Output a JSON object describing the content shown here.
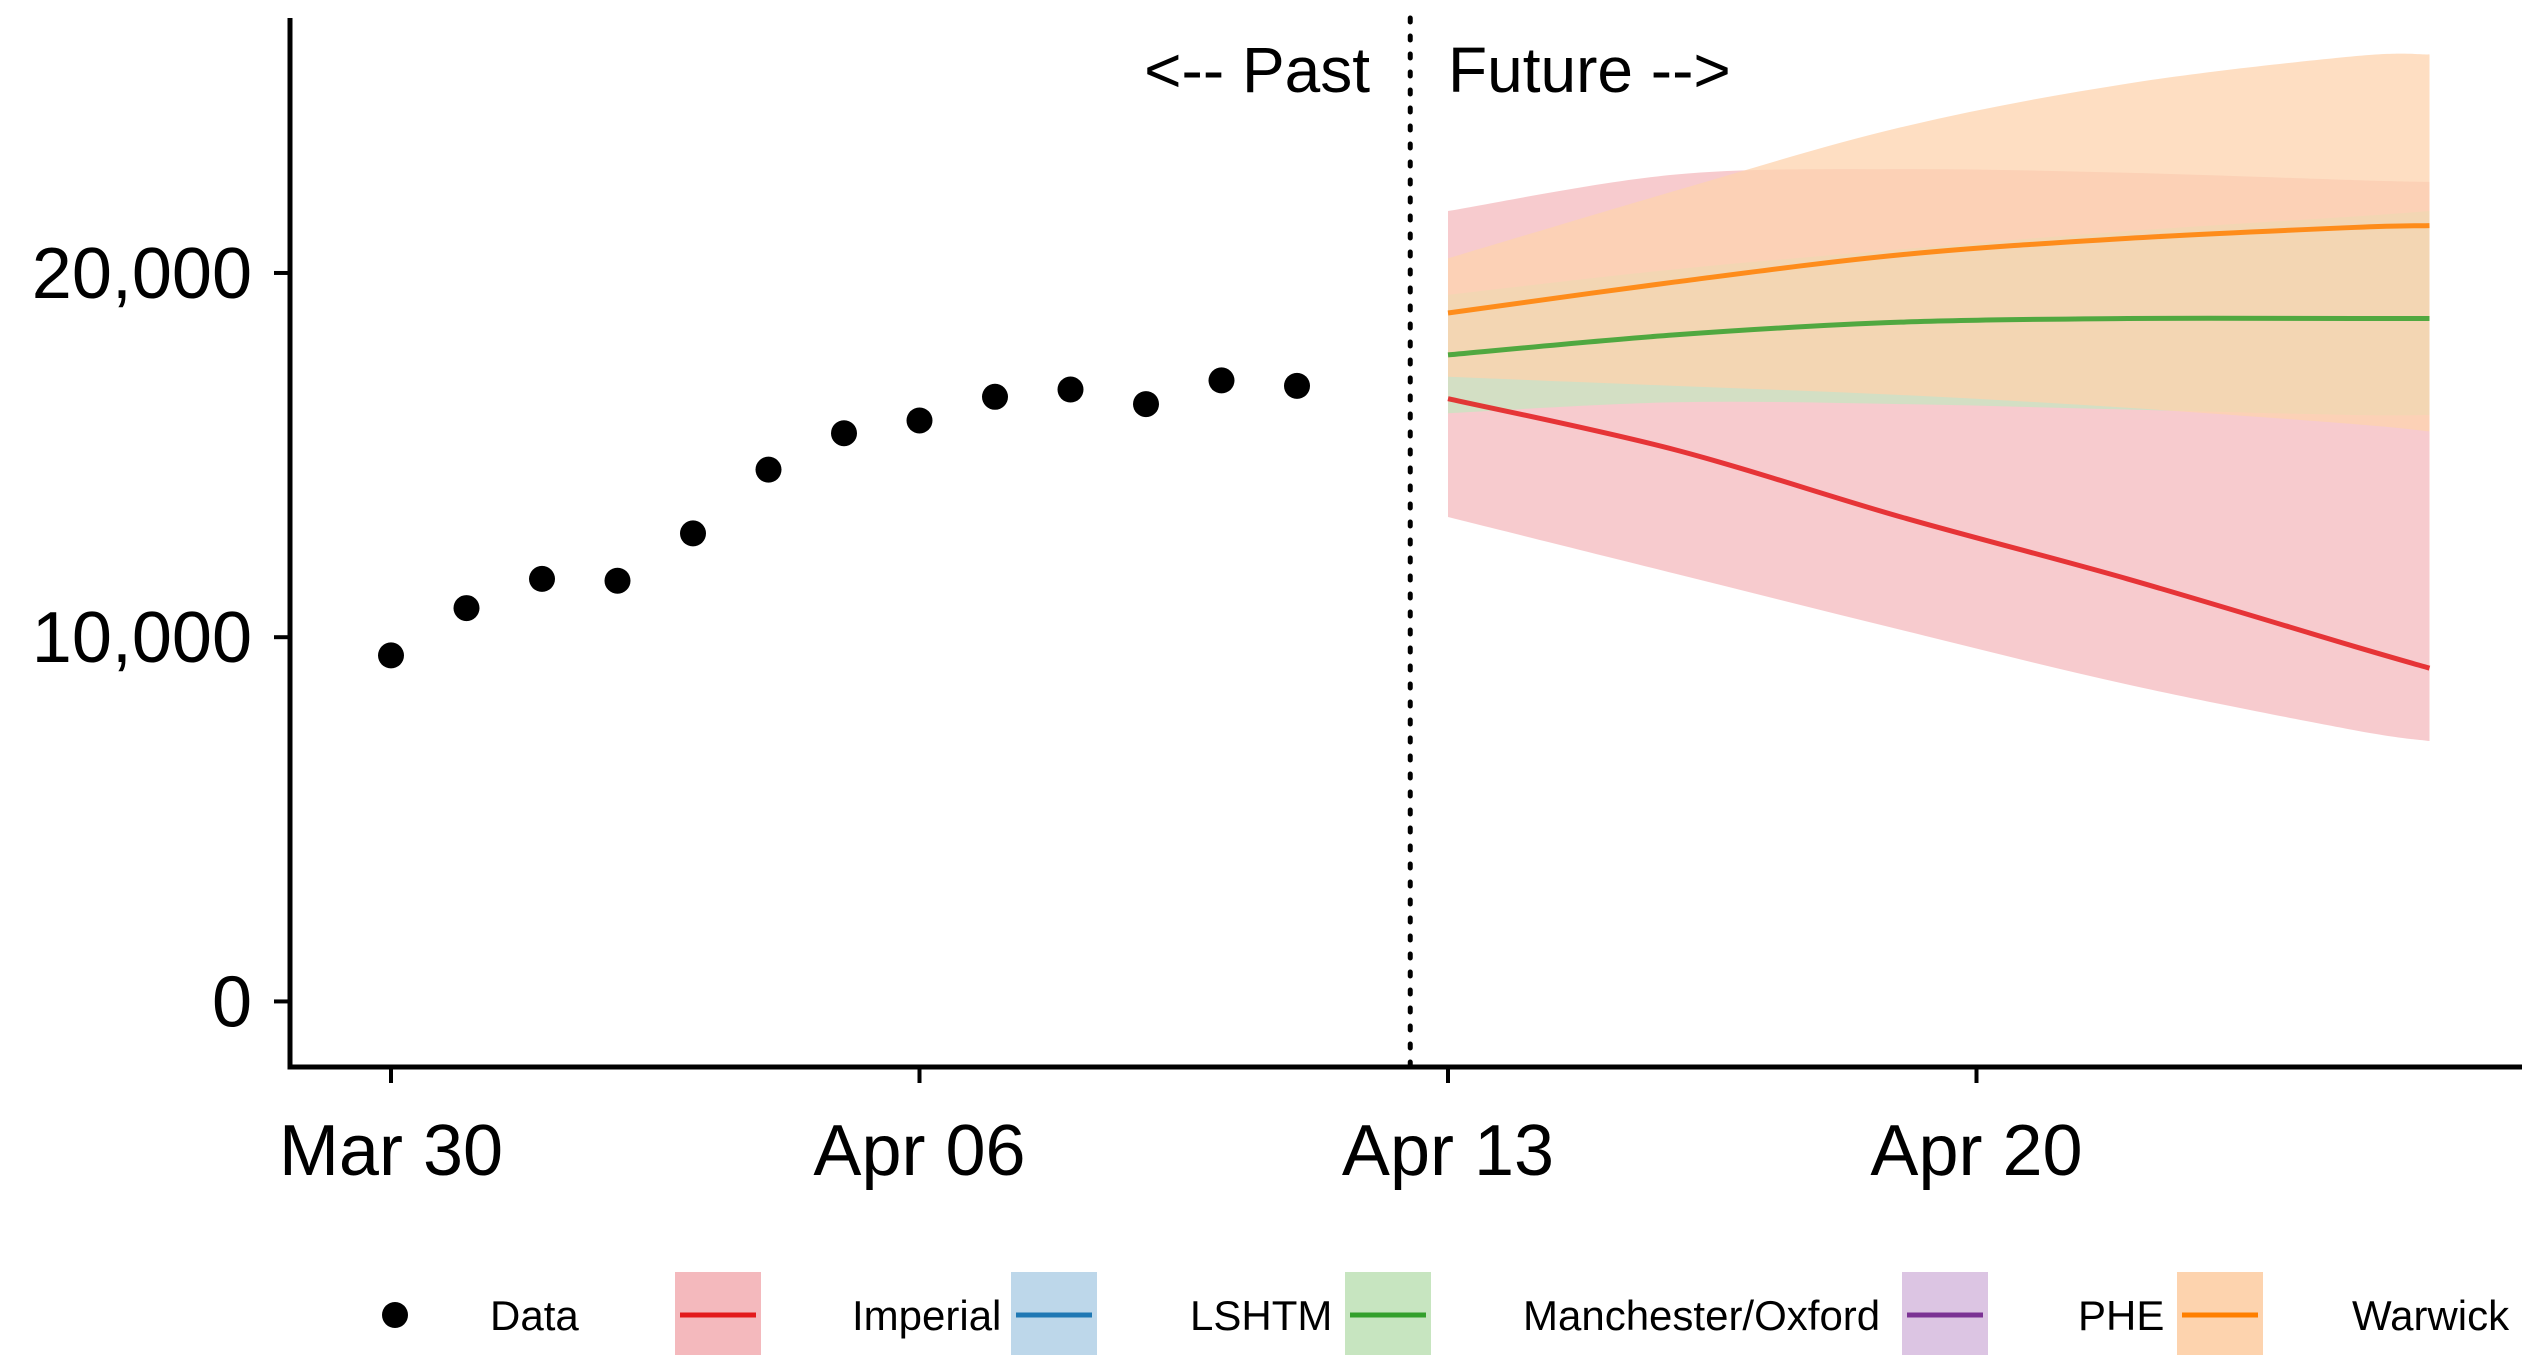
{
  "chart_data": {
    "type": "line",
    "title": "",
    "xlabel": "",
    "ylabel": "",
    "x_ticks": [
      "Mar 30",
      "Apr 06",
      "Apr 13",
      "Apr 20"
    ],
    "y_ticks": [
      "0",
      "10,000",
      "20,000"
    ],
    "ylim": [
      -1800,
      27000
    ],
    "grid": false,
    "legend_position": "bottom",
    "divider": {
      "date": "2020-04-12.5",
      "past_label": "<-- Past",
      "future_label": "Future -->"
    },
    "data_points": {
      "name": "Data",
      "x": [
        "2020-03-30",
        "2020-03-31",
        "2020-04-01",
        "2020-04-02",
        "2020-04-03",
        "2020-04-04",
        "2020-04-05",
        "2020-04-06",
        "2020-04-07",
        "2020-04-08",
        "2020-04-09",
        "2020-04-10",
        "2020-04-11"
      ],
      "y": [
        9500,
        10800,
        11600,
        11550,
        12850,
        14600,
        15600,
        15950,
        16600,
        16800,
        16400,
        17050,
        16900
      ]
    },
    "series": [
      {
        "name": "Imperial",
        "color": "#e31a1c",
        "band_color": "#f4b9bd",
        "x": [
          "2020-04-13",
          "2020-04-16",
          "2020-04-19",
          "2020-04-22",
          "2020-04-25",
          "2020-04-26"
        ],
        "y": [
          16550,
          15150,
          13300,
          11600,
          9750,
          9150
        ],
        "lower": [
          13300,
          11750,
          10200,
          8700,
          7450,
          7150
        ],
        "upper": [
          21700,
          22700,
          22850,
          22750,
          22550,
          22500
        ]
      },
      {
        "name": "LSHTM",
        "color": "#1f78b4",
        "band_color": "#bdd7ea",
        "x": [],
        "y": [],
        "lower": [],
        "upper": []
      },
      {
        "name": "Manchester/Oxford",
        "color": "#33a02c",
        "band_color": "#c7e5c0",
        "x": [
          "2020-04-13",
          "2020-04-16",
          "2020-04-19",
          "2020-04-22",
          "2020-04-25",
          "2020-04-26"
        ],
        "y": [
          17750,
          18300,
          18650,
          18750,
          18750,
          18750
        ],
        "lower": [
          16150,
          16450,
          16400,
          16250,
          16100,
          16100
        ],
        "upper": [
          19400,
          20100,
          20650,
          21150,
          21550,
          21700
        ]
      },
      {
        "name": "PHE",
        "color": "#7b3294",
        "band_color": "#dcc5e3",
        "x": [],
        "y": [],
        "lower": [],
        "upper": []
      },
      {
        "name": "Warwick",
        "color": "#ff7f00",
        "band_color": "#fdd3ae",
        "x": [
          "2020-04-13",
          "2020-04-16",
          "2020-04-19",
          "2020-04-22",
          "2020-04-25",
          "2020-04-26"
        ],
        "y": [
          18900,
          19750,
          20500,
          20950,
          21250,
          21300
        ],
        "lower": [
          17150,
          16900,
          16650,
          16300,
          15850,
          15650
        ],
        "upper": [
          20400,
          22250,
          24000,
          25200,
          25950,
          26000
        ]
      }
    ],
    "legend": [
      {
        "label": "Data",
        "kind": "point",
        "color": "#000000"
      },
      {
        "label": "Imperial",
        "kind": "band",
        "color": "#e31a1c",
        "band_color": "#f4b9bd"
      },
      {
        "label": "LSHTM",
        "kind": "band",
        "color": "#1f78b4",
        "band_color": "#bdd7ea"
      },
      {
        "label": "Manchester/Oxford",
        "kind": "band",
        "color": "#33a02c",
        "band_color": "#c7e5c0"
      },
      {
        "label": "PHE",
        "kind": "band",
        "color": "#7b3294",
        "band_color": "#dcc5e3"
      },
      {
        "label": "Warwick",
        "kind": "band",
        "color": "#ff7f00",
        "band_color": "#fdd3ae"
      }
    ]
  }
}
